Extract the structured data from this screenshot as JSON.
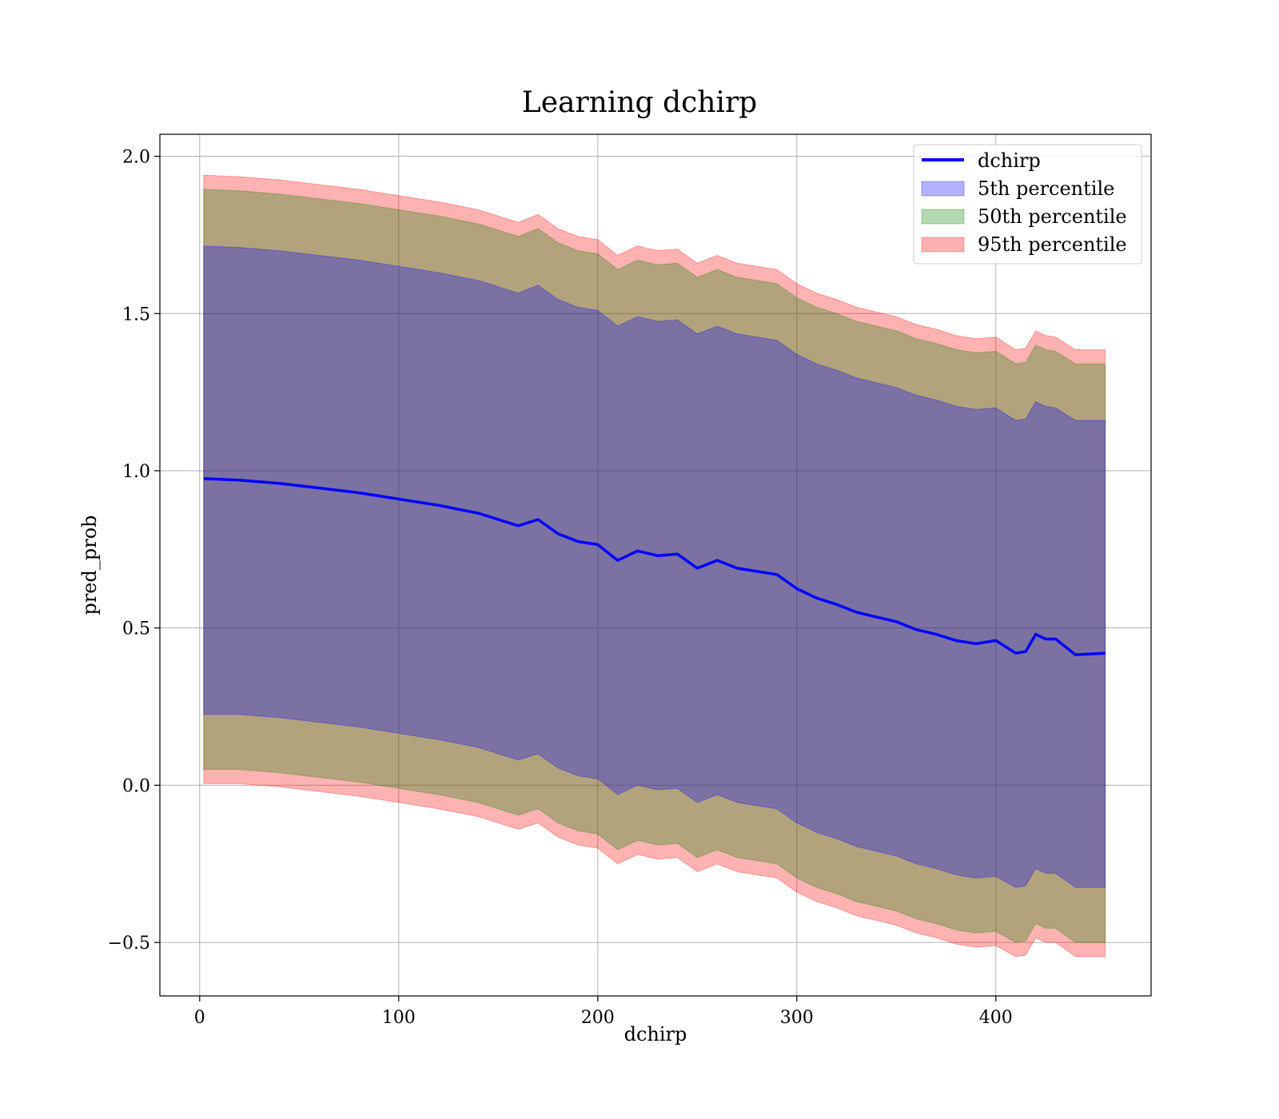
{
  "chart_data": {
    "type": "area",
    "title": "Learning dchirp",
    "xlabel": "dchirp",
    "ylabel": "pred_prob",
    "xlim": [
      -20,
      478
    ],
    "ylim": [
      -0.67,
      2.07
    ],
    "x_ticks": [
      0,
      100,
      200,
      300,
      400
    ],
    "y_ticks": [
      -0.5,
      0.0,
      0.5,
      1.0,
      1.5,
      2.0
    ],
    "x_tick_labels": [
      "0",
      "100",
      "200",
      "300",
      "400"
    ],
    "y_tick_labels": [
      "−0.5",
      "0.0",
      "0.5",
      "1.0",
      "1.5",
      "2.0"
    ],
    "grid": true,
    "legend_position": "top-right",
    "legend": [
      {
        "label": "dchirp",
        "kind": "line",
        "color": "#0000ff"
      },
      {
        "label": "5th percentile",
        "kind": "fill",
        "color": "#0000ff"
      },
      {
        "label": "50th percentile",
        "kind": "fill",
        "color": "#008000"
      },
      {
        "label": "95th percentile",
        "kind": "fill",
        "color": "#ff0000"
      }
    ],
    "line": {
      "name": "dchirp",
      "color": "#0000ff",
      "x": [
        2,
        20,
        40,
        60,
        80,
        100,
        120,
        140,
        160,
        170,
        180,
        190,
        200,
        210,
        220,
        230,
        240,
        250,
        260,
        270,
        280,
        290,
        300,
        310,
        320,
        330,
        340,
        350,
        360,
        370,
        380,
        390,
        400,
        410,
        415,
        420,
        425,
        430,
        440,
        455
      ],
      "y": [
        0.975,
        0.97,
        0.96,
        0.945,
        0.93,
        0.91,
        0.89,
        0.865,
        0.825,
        0.845,
        0.8,
        0.775,
        0.765,
        0.715,
        0.745,
        0.73,
        0.735,
        0.69,
        0.715,
        0.69,
        0.68,
        0.67,
        0.625,
        0.595,
        0.575,
        0.55,
        0.535,
        0.52,
        0.495,
        0.48,
        0.46,
        0.45,
        0.46,
        0.42,
        0.425,
        0.48,
        0.465,
        0.465,
        0.415,
        0.42
      ]
    },
    "bands": [
      {
        "name": "95th percentile",
        "color": "#ff0000",
        "x": [
          2,
          20,
          40,
          60,
          80,
          100,
          120,
          140,
          160,
          170,
          180,
          190,
          200,
          210,
          220,
          230,
          240,
          250,
          260,
          270,
          280,
          290,
          300,
          310,
          320,
          330,
          340,
          350,
          360,
          370,
          380,
          390,
          400,
          410,
          415,
          420,
          425,
          430,
          440,
          455
        ],
        "upper": [
          1.94,
          1.935,
          1.925,
          1.91,
          1.895,
          1.875,
          1.855,
          1.83,
          1.79,
          1.815,
          1.77,
          1.745,
          1.735,
          1.685,
          1.715,
          1.7,
          1.705,
          1.66,
          1.685,
          1.66,
          1.65,
          1.64,
          1.595,
          1.565,
          1.545,
          1.52,
          1.505,
          1.49,
          1.465,
          1.45,
          1.43,
          1.42,
          1.425,
          1.385,
          1.39,
          1.445,
          1.43,
          1.425,
          1.385,
          1.385
        ],
        "lower": [
          0.005,
          0.005,
          -0.005,
          -0.02,
          -0.035,
          -0.055,
          -0.075,
          -0.1,
          -0.14,
          -0.12,
          -0.165,
          -0.19,
          -0.2,
          -0.25,
          -0.22,
          -0.235,
          -0.23,
          -0.275,
          -0.25,
          -0.275,
          -0.285,
          -0.295,
          -0.34,
          -0.37,
          -0.39,
          -0.415,
          -0.43,
          -0.445,
          -0.47,
          -0.485,
          -0.505,
          -0.515,
          -0.51,
          -0.545,
          -0.54,
          -0.485,
          -0.5,
          -0.5,
          -0.545,
          -0.545
        ]
      },
      {
        "name": "50th percentile",
        "color": "#008000",
        "x": [
          2,
          20,
          40,
          60,
          80,
          100,
          120,
          140,
          160,
          170,
          180,
          190,
          200,
          210,
          220,
          230,
          240,
          250,
          260,
          270,
          280,
          290,
          300,
          310,
          320,
          330,
          340,
          350,
          360,
          370,
          380,
          390,
          400,
          410,
          415,
          420,
          425,
          430,
          440,
          455
        ],
        "upper": [
          1.895,
          1.89,
          1.88,
          1.865,
          1.85,
          1.83,
          1.81,
          1.785,
          1.745,
          1.77,
          1.725,
          1.7,
          1.69,
          1.64,
          1.67,
          1.655,
          1.66,
          1.615,
          1.64,
          1.615,
          1.605,
          1.595,
          1.55,
          1.52,
          1.5,
          1.475,
          1.46,
          1.445,
          1.42,
          1.405,
          1.385,
          1.375,
          1.38,
          1.34,
          1.345,
          1.4,
          1.385,
          1.38,
          1.34,
          1.34
        ],
        "lower": [
          0.05,
          0.05,
          0.04,
          0.025,
          0.01,
          -0.01,
          -0.03,
          -0.055,
          -0.095,
          -0.075,
          -0.12,
          -0.145,
          -0.155,
          -0.205,
          -0.175,
          -0.19,
          -0.185,
          -0.23,
          -0.205,
          -0.23,
          -0.24,
          -0.25,
          -0.295,
          -0.325,
          -0.345,
          -0.37,
          -0.385,
          -0.4,
          -0.425,
          -0.44,
          -0.46,
          -0.47,
          -0.465,
          -0.5,
          -0.495,
          -0.44,
          -0.455,
          -0.455,
          -0.5,
          -0.5
        ]
      },
      {
        "name": "5th percentile",
        "color": "#0000ff",
        "x": [
          2,
          20,
          40,
          60,
          80,
          100,
          120,
          140,
          160,
          170,
          180,
          190,
          200,
          210,
          220,
          230,
          240,
          250,
          260,
          270,
          280,
          290,
          300,
          310,
          320,
          330,
          340,
          350,
          360,
          370,
          380,
          390,
          400,
          410,
          415,
          420,
          425,
          430,
          440,
          455
        ],
        "upper": [
          1.715,
          1.71,
          1.7,
          1.685,
          1.67,
          1.65,
          1.63,
          1.605,
          1.565,
          1.59,
          1.545,
          1.52,
          1.51,
          1.46,
          1.49,
          1.475,
          1.48,
          1.435,
          1.46,
          1.435,
          1.425,
          1.415,
          1.37,
          1.34,
          1.32,
          1.295,
          1.28,
          1.265,
          1.24,
          1.225,
          1.205,
          1.195,
          1.2,
          1.16,
          1.165,
          1.22,
          1.205,
          1.2,
          1.16,
          1.16
        ],
        "lower": [
          0.225,
          0.225,
          0.215,
          0.2,
          0.185,
          0.165,
          0.145,
          0.12,
          0.08,
          0.1,
          0.055,
          0.03,
          0.02,
          -0.03,
          0.0,
          -0.015,
          -0.01,
          -0.055,
          -0.03,
          -0.055,
          -0.065,
          -0.075,
          -0.12,
          -0.15,
          -0.17,
          -0.195,
          -0.21,
          -0.225,
          -0.25,
          -0.265,
          -0.285,
          -0.295,
          -0.29,
          -0.325,
          -0.32,
          -0.265,
          -0.28,
          -0.28,
          -0.325,
          -0.325
        ]
      }
    ]
  }
}
